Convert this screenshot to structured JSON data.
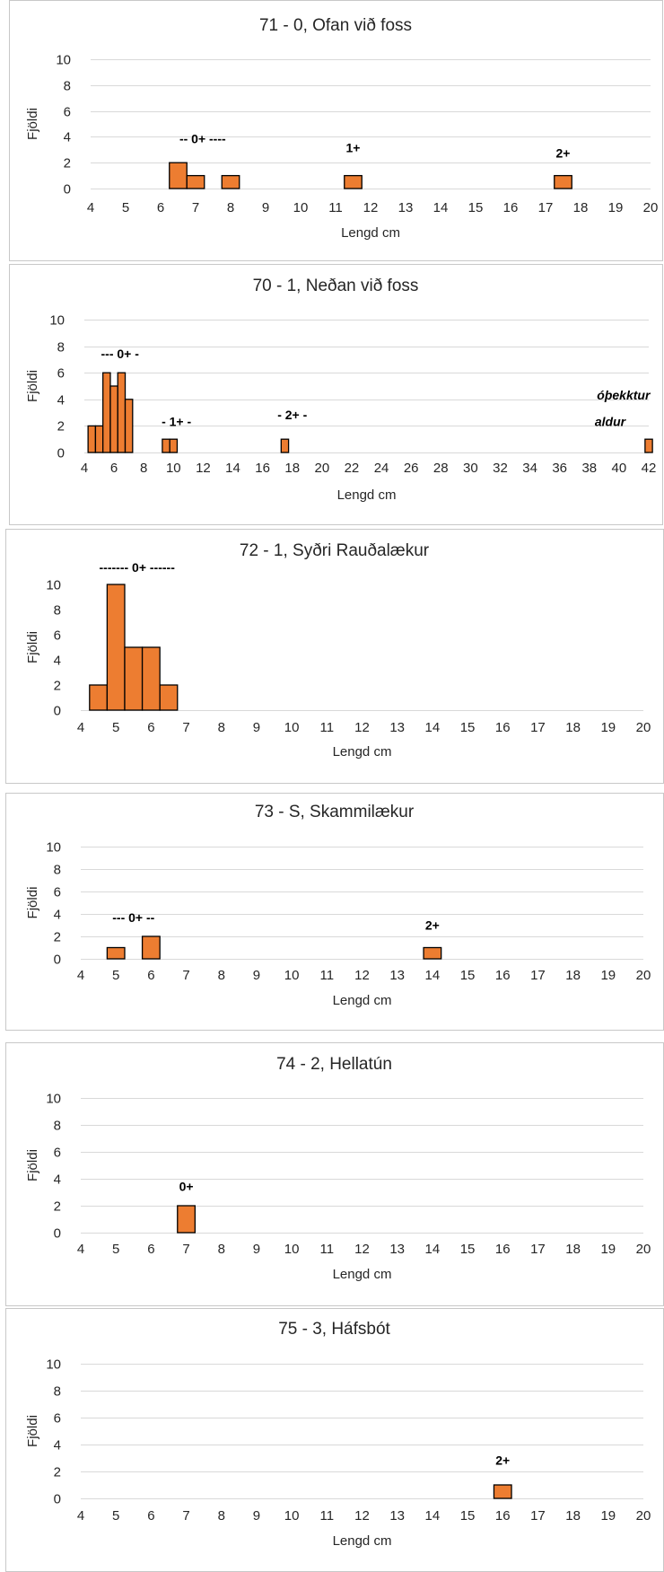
{
  "chart_data": [
    {
      "type": "bar",
      "title": "71 - 0, Ofan við foss",
      "xlabel": "Lengd cm",
      "ylabel": "Fjöldi",
      "xlim": [
        4,
        20
      ],
      "ylim": [
        0,
        10
      ],
      "xticks": [
        4,
        5,
        6,
        7,
        8,
        9,
        10,
        11,
        12,
        13,
        14,
        15,
        16,
        17,
        18,
        19,
        20
      ],
      "yticks": [
        0,
        2,
        4,
        6,
        8,
        10
      ],
      "grid": true,
      "bar_width": 0.5,
      "bars": [
        {
          "x": 6.5,
          "value": 2
        },
        {
          "x": 7.0,
          "value": 1
        },
        {
          "x": 8.0,
          "value": 1
        },
        {
          "x": 11.5,
          "value": 1
        },
        {
          "x": 17.5,
          "value": 1
        }
      ],
      "annotations": [
        {
          "text": "-- 0+ ----",
          "x": 7.2,
          "y": 3.5
        },
        {
          "text": "1+",
          "x": 11.5,
          "y": 2.8
        },
        {
          "text": "2+",
          "x": 17.5,
          "y": 2.4
        }
      ]
    },
    {
      "type": "bar",
      "title": "70 - 1, Neðan við foss",
      "xlabel": "Lengd cm",
      "ylabel": "Fjöldi",
      "xlim": [
        4,
        42
      ],
      "ylim": [
        0,
        10
      ],
      "xticks": [
        4,
        6,
        8,
        10,
        12,
        14,
        16,
        18,
        20,
        22,
        24,
        26,
        28,
        30,
        32,
        34,
        36,
        38,
        40,
        42
      ],
      "yticks": [
        0,
        2,
        4,
        6,
        8,
        10
      ],
      "grid": true,
      "bar_width": 0.5,
      "bars": [
        {
          "x": 4.5,
          "value": 2
        },
        {
          "x": 5.0,
          "value": 2
        },
        {
          "x": 5.5,
          "value": 6
        },
        {
          "x": 6.0,
          "value": 5
        },
        {
          "x": 6.5,
          "value": 6
        },
        {
          "x": 7.0,
          "value": 4
        },
        {
          "x": 9.5,
          "value": 1
        },
        {
          "x": 10.0,
          "value": 1
        },
        {
          "x": 17.5,
          "value": 1
        },
        {
          "x": 42.0,
          "value": 1
        }
      ],
      "annotations": [
        {
          "text": "--- 0+ -",
          "x": 6.4,
          "y": 7.1,
          "style": "bold"
        },
        {
          "text": "- 1+ -",
          "x": 10.2,
          "y": 2.0,
          "style": "bold"
        },
        {
          "text": "- 2+ -",
          "x": 18.0,
          "y": 2.5,
          "style": "bold"
        },
        {
          "text": "óþekktur",
          "x": 40.3,
          "y": 4.0,
          "style": "italic"
        },
        {
          "text": "aldur",
          "x": 39.4,
          "y": 2.0,
          "style": "italic"
        }
      ]
    },
    {
      "type": "bar",
      "title": "72 - 1, Syðri Rauðalækur",
      "xlabel": "Lengd cm",
      "ylabel": "Fjöldi",
      "xlim": [
        4,
        20
      ],
      "ylim": [
        0,
        10
      ],
      "xticks": [
        4,
        5,
        6,
        7,
        8,
        9,
        10,
        11,
        12,
        13,
        14,
        15,
        16,
        17,
        18,
        19,
        20
      ],
      "yticks": [
        0,
        2,
        4,
        6,
        8,
        10
      ],
      "grid": false,
      "bar_width": 0.5,
      "bars": [
        {
          "x": 4.5,
          "value": 2
        },
        {
          "x": 5.0,
          "value": 10
        },
        {
          "x": 5.5,
          "value": 5
        },
        {
          "x": 6.0,
          "value": 5
        },
        {
          "x": 6.5,
          "value": 2
        }
      ],
      "annotations": [
        {
          "text": "------- 0+ ------",
          "x": 5.6,
          "y": 11.0
        }
      ]
    },
    {
      "type": "bar",
      "title": "73 - S, Skammilækur",
      "xlabel": "Lengd cm",
      "ylabel": "Fjöldi",
      "xlim": [
        4,
        20
      ],
      "ylim": [
        0,
        10
      ],
      "xticks": [
        4,
        5,
        6,
        7,
        8,
        9,
        10,
        11,
        12,
        13,
        14,
        15,
        16,
        17,
        18,
        19,
        20
      ],
      "yticks": [
        0,
        2,
        4,
        6,
        8,
        10
      ],
      "grid": true,
      "bar_width": 0.5,
      "bars": [
        {
          "x": 5.0,
          "value": 1
        },
        {
          "x": 6.0,
          "value": 2
        },
        {
          "x": 14.0,
          "value": 1
        }
      ],
      "annotations": [
        {
          "text": "--- 0+ --",
          "x": 5.5,
          "y": 3.3
        },
        {
          "text": "2+",
          "x": 14.0,
          "y": 2.6
        }
      ]
    },
    {
      "type": "bar",
      "title": "74 - 2, Hellatún",
      "xlabel": "Lengd cm",
      "ylabel": "Fjöldi",
      "xlim": [
        4,
        20
      ],
      "ylim": [
        0,
        10
      ],
      "xticks": [
        4,
        5,
        6,
        7,
        8,
        9,
        10,
        11,
        12,
        13,
        14,
        15,
        16,
        17,
        18,
        19,
        20
      ],
      "yticks": [
        0,
        2,
        4,
        6,
        8,
        10
      ],
      "grid": true,
      "bar_width": 0.5,
      "bars": [
        {
          "x": 7.0,
          "value": 2
        }
      ],
      "annotations": [
        {
          "text": "0+",
          "x": 7.0,
          "y": 3.1
        }
      ]
    },
    {
      "type": "bar",
      "title": "75 - 3, Háfsbót",
      "xlabel": "Lengd cm",
      "ylabel": "Fjöldi",
      "xlim": [
        4,
        20
      ],
      "ylim": [
        0,
        10
      ],
      "xticks": [
        4,
        5,
        6,
        7,
        8,
        9,
        10,
        11,
        12,
        13,
        14,
        15,
        16,
        17,
        18,
        19,
        20
      ],
      "yticks": [
        0,
        2,
        4,
        6,
        8,
        10
      ],
      "grid": true,
      "bar_width": 0.5,
      "bars": [
        {
          "x": 16.0,
          "value": 1
        }
      ],
      "annotations": [
        {
          "text": "2+",
          "x": 16.0,
          "y": 2.5
        }
      ]
    }
  ]
}
